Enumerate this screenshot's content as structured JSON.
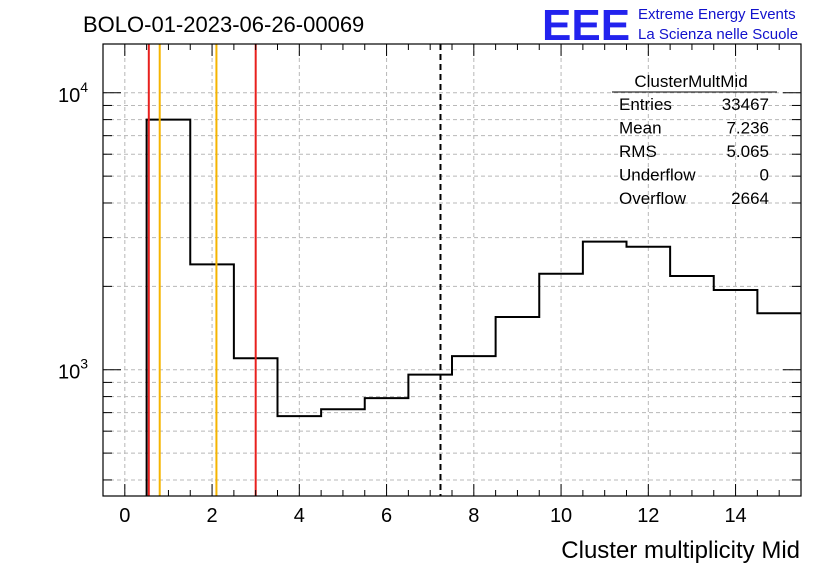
{
  "run_title": "BOLO-01-2023-06-26-00069",
  "logo": {
    "letters": "EEE",
    "line1": "Extreme Energy Events",
    "line2": "La Scienza nelle Scuole",
    "color": "#2222ee"
  },
  "stats": {
    "name": "ClusterMultMid",
    "rows": [
      {
        "label": "Entries",
        "value": "33467"
      },
      {
        "label": "Mean",
        "value": "7.236"
      },
      {
        "label": "RMS",
        "value": "5.065"
      },
      {
        "label": "Underflow",
        "value": "0"
      },
      {
        "label": "Overflow",
        "value": "2664"
      }
    ]
  },
  "chart_data": {
    "type": "histogram",
    "xlabel": "Cluster multiplicity Mid",
    "ylabel": "",
    "xlim": [
      -0.5,
      15.5
    ],
    "ylim": [
      350,
      15000
    ],
    "y_scale": "log",
    "grid": true,
    "x_ticks": [
      0,
      2,
      4,
      6,
      8,
      10,
      12,
      14
    ],
    "y_tick_labels": [
      {
        "base": "10",
        "exp": "3",
        "value": 1000
      },
      {
        "base": "10",
        "exp": "4",
        "value": 10000
      }
    ],
    "bins": [
      {
        "x0": 0.5,
        "x1": 1.5,
        "count": 8000
      },
      {
        "x0": 1.5,
        "x1": 2.5,
        "count": 2400
      },
      {
        "x0": 2.5,
        "x1": 3.5,
        "count": 1100
      },
      {
        "x0": 3.5,
        "x1": 4.5,
        "count": 680
      },
      {
        "x0": 4.5,
        "x1": 5.5,
        "count": 720
      },
      {
        "x0": 5.5,
        "x1": 6.5,
        "count": 790
      },
      {
        "x0": 6.5,
        "x1": 7.5,
        "count": 960
      },
      {
        "x0": 7.5,
        "x1": 8.5,
        "count": 1120
      },
      {
        "x0": 8.5,
        "x1": 9.5,
        "count": 1550
      },
      {
        "x0": 9.5,
        "x1": 10.5,
        "count": 2220
      },
      {
        "x0": 10.5,
        "x1": 11.5,
        "count": 2900
      },
      {
        "x0": 11.5,
        "x1": 12.5,
        "count": 2780
      },
      {
        "x0": 12.5,
        "x1": 13.5,
        "count": 2180
      },
      {
        "x0": 13.5,
        "x1": 14.5,
        "count": 1940
      },
      {
        "x0": 14.5,
        "x1": 15.5,
        "count": 1600
      }
    ],
    "vertical_lines": [
      {
        "x": 0.55,
        "color": "#e8201e",
        "style": "solid"
      },
      {
        "x": 0.8,
        "color": "#f5b400",
        "style": "solid"
      },
      {
        "x": 2.1,
        "color": "#f5b400",
        "style": "solid"
      },
      {
        "x": 3.0,
        "color": "#e8201e",
        "style": "solid"
      },
      {
        "x": 7.236,
        "color": "#000000",
        "style": "dashed"
      }
    ]
  }
}
